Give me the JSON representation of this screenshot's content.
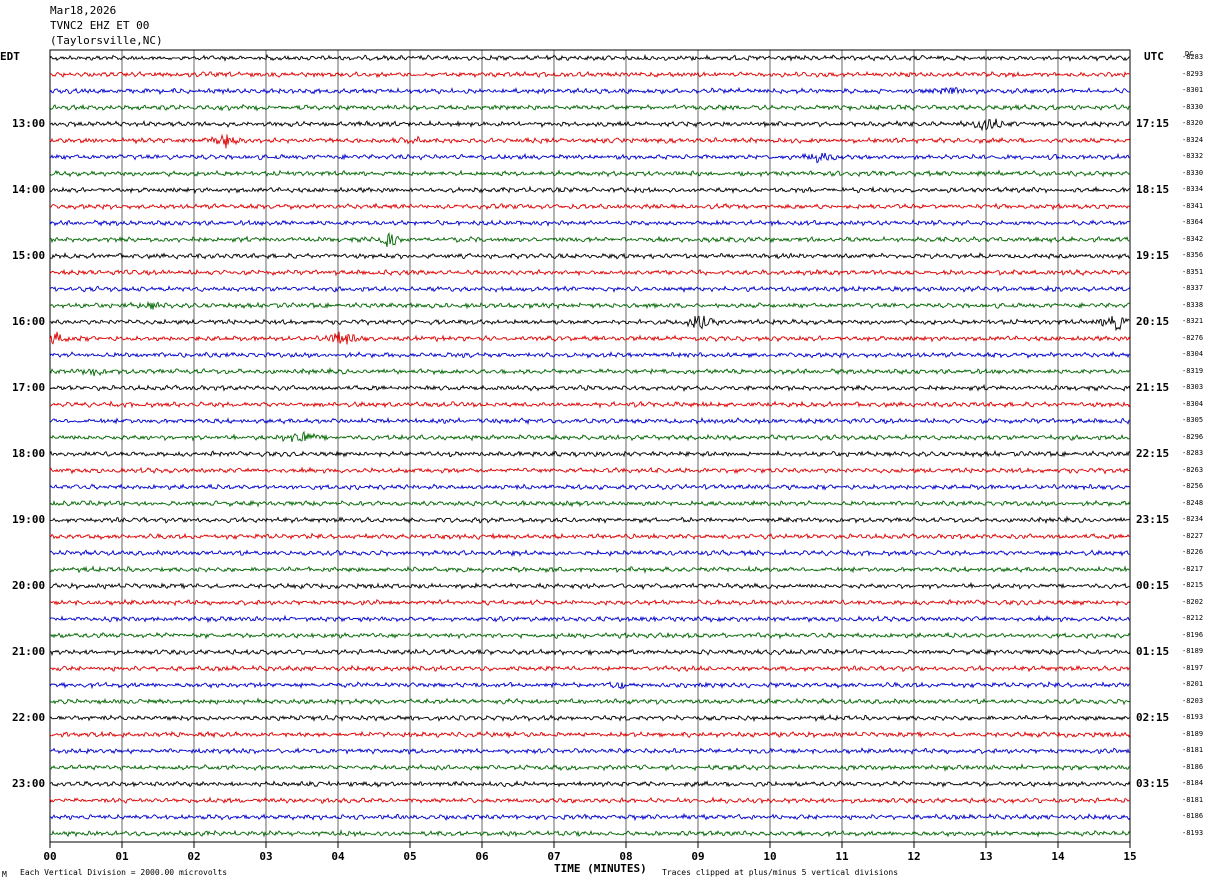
{
  "header": {
    "date": "Mar18,2026",
    "station": "TVNC2 EHZ ET 00",
    "location": "(Taylorsville,NC)"
  },
  "left_zone_label": "EDT",
  "right_zone_label": "UTC",
  "dc_header": "DC",
  "footer": {
    "scale_note": "Each Vertical Division = 2000.00 microvolts",
    "clip_note": "Traces clipped at plus/minus 5 vertical divisions",
    "corner_mark": "M"
  },
  "chart_data": {
    "type": "line",
    "title": "",
    "xlabel": "TIME (MINUTES)",
    "ylabel": "",
    "x_ticks": [
      "00",
      "01",
      "02",
      "03",
      "04",
      "05",
      "06",
      "07",
      "08",
      "09",
      "10",
      "11",
      "12",
      "13",
      "14",
      "15"
    ],
    "xlim": [
      0,
      15
    ],
    "grid": true,
    "trace_colors": [
      "#000000",
      "#dd0000",
      "#0000cc",
      "#006600"
    ],
    "left_hour_labels": [
      "13:00",
      "14:00",
      "15:00",
      "16:00",
      "17:00",
      "18:00",
      "19:00",
      "20:00",
      "21:00",
      "22:00",
      "23:00"
    ],
    "right_hour_labels": [
      "17:15",
      "18:15",
      "19:15",
      "20:15",
      "21:15",
      "22:15",
      "23:15",
      "00:15",
      "01:15",
      "02:15",
      "03:15"
    ],
    "dc_offsets": [
      "-8283",
      "-8293",
      "-8301",
      "-8330",
      "-8320",
      "-8324",
      "-8332",
      "-8330",
      "-8334",
      "-8341",
      "-8364",
      "-8342",
      "-8356",
      "-8351",
      "-8337",
      "-8338",
      "-8321",
      "-8276",
      "-8304",
      "-8319",
      "-8303",
      "-8304",
      "-8305",
      "-8296",
      "-8283",
      "-8263",
      "-8256",
      "-8248",
      "-8234",
      "-8227",
      "-8226",
      "-8217",
      "-8215",
      "-8202",
      "-8212",
      "-8196",
      "-8189",
      "-8197",
      "-8201",
      "-8203",
      "-8193",
      "-8189",
      "-8181",
      "-8186",
      "-8184",
      "-8181",
      "-8186",
      "-8193"
    ],
    "events": [
      {
        "trace": 2,
        "minute": 12.5,
        "amplitude": 3
      },
      {
        "trace": 4,
        "minute": 13.0,
        "amplitude": 9
      },
      {
        "trace": 5,
        "minute": 2.45,
        "amplitude": 6
      },
      {
        "trace": 5,
        "minute": 5.1,
        "amplitude": 3
      },
      {
        "trace": 6,
        "minute": 10.7,
        "amplitude": 5
      },
      {
        "trace": 11,
        "minute": 4.7,
        "amplitude": 6
      },
      {
        "trace": 15,
        "minute": 1.4,
        "amplitude": 3
      },
      {
        "trace": 16,
        "minute": 9.0,
        "amplitude": 8
      },
      {
        "trace": 16,
        "minute": 14.8,
        "amplitude": 9
      },
      {
        "trace": 17,
        "minute": 0.1,
        "amplitude": 5
      },
      {
        "trace": 17,
        "minute": 4.05,
        "amplitude": 8
      },
      {
        "trace": 19,
        "minute": 0.6,
        "amplitude": 3
      },
      {
        "trace": 23,
        "minute": 3.5,
        "amplitude": 8
      },
      {
        "trace": 38,
        "minute": 7.9,
        "amplitude": 3
      }
    ]
  }
}
